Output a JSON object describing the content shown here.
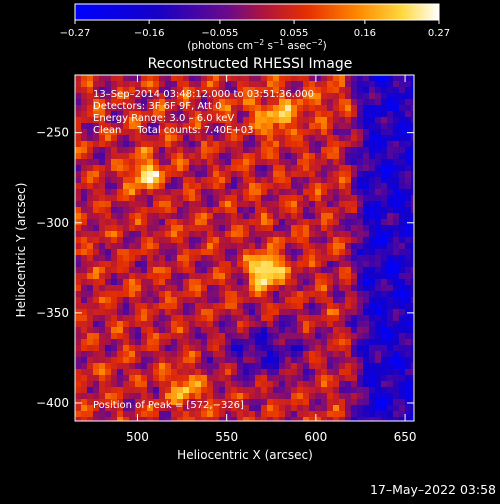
{
  "chart_data": {
    "type": "heatmap",
    "title": "Reconstructed RHESSI Image",
    "xlabel": "Heliocentric X (arcsec)",
    "ylabel": "Heliocentric Y (arcsec)",
    "xlim": [
      465,
      655
    ],
    "ylim": [
      -410,
      -218
    ],
    "x_ticks": [
      500,
      550,
      600,
      650
    ],
    "y_ticks": [
      -250,
      -300,
      -350,
      -400
    ],
    "x_tick_labels": [
      "500",
      "550",
      "600",
      "650"
    ],
    "y_tick_labels": [
      "−250",
      "−300",
      "−350",
      "−400"
    ],
    "colorbar": {
      "range": [
        -0.27,
        0.27
      ],
      "ticks": [
        -0.27,
        -0.16,
        -0.055,
        0.055,
        0.16,
        0.27
      ],
      "tick_labels": [
        "−0.27",
        "−0.16",
        "−0.055",
        "0.055",
        "0.16",
        "0.27"
      ],
      "unit_main": "(photons cm",
      "unit_sup1": "−2",
      "unit_mid1": " s",
      "unit_sup2": "−1",
      "unit_mid2": " asec",
      "unit_sup3": "−2",
      "unit_end": ")"
    },
    "annotations": [
      "13–Sep–2014 03:48:12.000 to 03:51:36.000",
      "Detectors: 3F 6F 9F, Att 0",
      "Energy Range: 3.0 – 6.0 keV",
      "Clean     Total counts: 7.40E+03"
    ],
    "peak_label": "Position of Peak = [572,−326]",
    "sources": [
      {
        "x": 572,
        "y": -326,
        "value": 0.27
      },
      {
        "x": 504,
        "y": -273,
        "value": 0.2
      },
      {
        "x": 527,
        "y": -392,
        "value": 0.16
      },
      {
        "x": 578,
        "y": -244,
        "value": 0.12
      }
    ]
  },
  "footer": {
    "timestamp": "17–May–2022 03:58"
  },
  "colors": {
    "frame": "#ffffff",
    "background": "#000000"
  }
}
